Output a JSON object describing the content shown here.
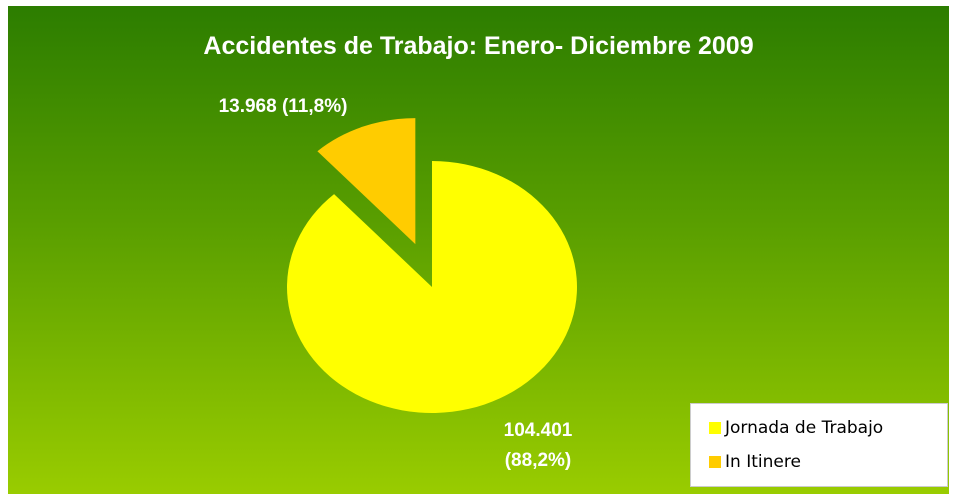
{
  "chart_data": {
    "type": "pie",
    "title": "Accidentes de Trabajo: Enero- Diciembre 2009",
    "categories": [
      "Jornada de Trabajo",
      "In Itinere"
    ],
    "values": [
      104401,
      13968
    ],
    "value_labels": [
      "104.401 (88,2%)",
      "13.968 (11,8%)"
    ],
    "colors": [
      "#ffff00",
      "#ffcc00"
    ],
    "exploded": [
      false,
      true
    ],
    "legend": "bottom-right"
  }
}
